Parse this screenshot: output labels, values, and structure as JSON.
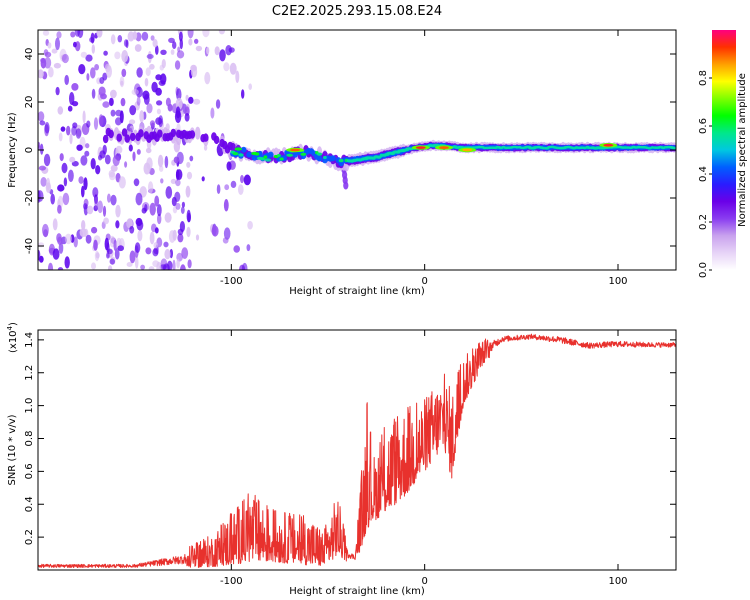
{
  "title": "C2E2.2025.293.15.08.E24",
  "colors": {
    "background": "#ffffff",
    "axis": "#000000",
    "snr_line": "#e8312d"
  },
  "chart_data": [
    {
      "type": "heatmap",
      "name": "spectrogram",
      "xlabel": "Height of straight line (km)",
      "ylabel": "Frequency (Hz)",
      "xlim": [
        -200,
        130
      ],
      "ylim": [
        -50,
        50
      ],
      "x_ticks": [
        -100,
        0,
        100
      ],
      "y_ticks": [
        -40,
        -20,
        0,
        20,
        40
      ],
      "colorbar": {
        "label": "Normalized spectral amplitude",
        "range": [
          0,
          1
        ],
        "ticks": [
          0.0,
          0.2,
          0.4,
          0.6,
          0.8
        ],
        "colormap": [
          "#ffffff",
          "#e7d4f7",
          "#c9a2ee",
          "#8a3df0",
          "#6a00e8",
          "#2a1cff",
          "#0060ff",
          "#00c8e0",
          "#00e88a",
          "#00ff00",
          "#7fff00",
          "#ffff00",
          "#ffa000",
          "#ff3000",
          "#ff007f"
        ]
      },
      "ridge": [
        {
          "x": -160,
          "f": 6
        },
        {
          "x": -140,
          "f": 6
        },
        {
          "x": -120,
          "f": 6
        },
        {
          "x": -110,
          "f": 5
        },
        {
          "x": -100,
          "f": 0
        },
        {
          "x": -90,
          "f": -2
        },
        {
          "x": -80,
          "f": -3
        },
        {
          "x": -70,
          "f": -2
        },
        {
          "x": -60,
          "f": -1
        },
        {
          "x": -50,
          "f": -4
        },
        {
          "x": -42,
          "f": -5
        },
        {
          "x": -35,
          "f": -4
        },
        {
          "x": -25,
          "f": -3
        },
        {
          "x": -15,
          "f": -1
        },
        {
          "x": -5,
          "f": 1
        },
        {
          "x": 5,
          "f": 2
        },
        {
          "x": 20,
          "f": 1
        },
        {
          "x": 40,
          "f": 1
        },
        {
          "x": 60,
          "f": 1
        },
        {
          "x": 80,
          "f": 1
        },
        {
          "x": 100,
          "f": 1
        },
        {
          "x": 130,
          "f": 1
        }
      ],
      "hotspots": [
        {
          "x": -67,
          "f": 0,
          "amp": 0.9
        },
        {
          "x": -2,
          "f": 1,
          "amp": 0.95
        },
        {
          "x": 10,
          "f": 1,
          "amp": 0.9
        },
        {
          "x": 22,
          "f": 0,
          "amp": 0.85
        },
        {
          "x": 95,
          "f": 2,
          "amp": 0.95
        }
      ],
      "noise_region": {
        "x_from": -200,
        "x_to": -100,
        "f_from": -50,
        "f_to": 50
      }
    },
    {
      "type": "line",
      "name": "snr",
      "xlabel": "Height of straight line (km)",
      "ylabel": "SNR (10 * v/v)",
      "y_scale_label": "(x10",
      "y_scale_exponent": "4",
      "xlim": [
        -200,
        130
      ],
      "ylim": [
        0,
        14600
      ],
      "x_ticks": [
        -100,
        0,
        100
      ],
      "y_ticks": [
        0.2,
        0.4,
        0.6,
        0.8,
        1.0,
        1.2,
        1.4
      ],
      "y_tick_labels": [
        "0.2",
        "0.4",
        "0.6",
        "0.8",
        "1.0",
        "1.2",
        "1.4"
      ],
      "envelope": [
        {
          "x": -200,
          "lo": 50,
          "hi": 450
        },
        {
          "x": -150,
          "lo": 50,
          "hi": 450
        },
        {
          "x": -125,
          "lo": 100,
          "hi": 1200
        },
        {
          "x": -110,
          "lo": 200,
          "hi": 2200
        },
        {
          "x": -100,
          "lo": 300,
          "hi": 3500
        },
        {
          "x": -90,
          "lo": 500,
          "hi": 4800
        },
        {
          "x": -80,
          "lo": 500,
          "hi": 3800
        },
        {
          "x": -70,
          "lo": 400,
          "hi": 3500
        },
        {
          "x": -60,
          "lo": 300,
          "hi": 3300
        },
        {
          "x": -52,
          "lo": 200,
          "hi": 2500
        },
        {
          "x": -45,
          "lo": 900,
          "hi": 4700
        },
        {
          "x": -40,
          "lo": 500,
          "hi": 1500
        },
        {
          "x": -36,
          "lo": 500,
          "hi": 1000
        },
        {
          "x": -32,
          "lo": 1500,
          "hi": 7000
        },
        {
          "x": -30,
          "lo": 2500,
          "hi": 10500
        },
        {
          "x": -26,
          "lo": 3000,
          "hi": 7000
        },
        {
          "x": -20,
          "lo": 3500,
          "hi": 9000
        },
        {
          "x": -10,
          "lo": 4500,
          "hi": 10000
        },
        {
          "x": 0,
          "lo": 6000,
          "hi": 10500
        },
        {
          "x": 10,
          "lo": 7500,
          "hi": 12000
        },
        {
          "x": 14,
          "lo": 5500,
          "hi": 11000
        },
        {
          "x": 20,
          "lo": 10000,
          "hi": 13000
        },
        {
          "x": 30,
          "lo": 12500,
          "hi": 14000
        },
        {
          "x": 40,
          "lo": 13700,
          "hi": 14400
        },
        {
          "x": 55,
          "lo": 13900,
          "hi": 14500
        },
        {
          "x": 70,
          "lo": 13600,
          "hi": 14400
        },
        {
          "x": 85,
          "lo": 13300,
          "hi": 14000
        },
        {
          "x": 100,
          "lo": 13400,
          "hi": 14100
        },
        {
          "x": 115,
          "lo": 13400,
          "hi": 14000
        },
        {
          "x": 130,
          "lo": 13400,
          "hi": 14000
        }
      ]
    }
  ]
}
